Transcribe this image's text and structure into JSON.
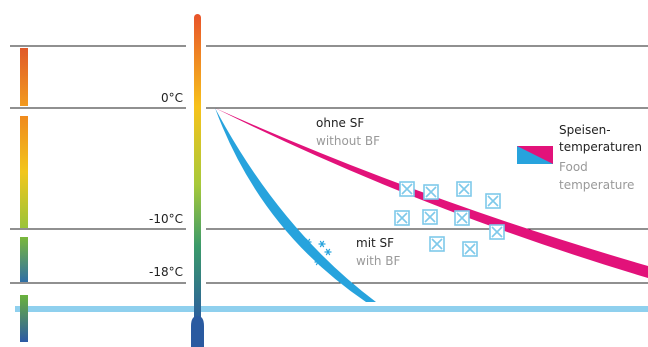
{
  "temperatures": [
    "0°C",
    "-10°C",
    "-18°C"
  ],
  "curves": {
    "without": {
      "label": "ohne SF",
      "translation": "without BF"
    },
    "with": {
      "label": "mit SF",
      "translation": "with BF"
    }
  },
  "legend": {
    "label_line1": "Speisen-",
    "label_line2": "temperaturen",
    "translation_line1": "Food",
    "translation_line2": "temperature"
  }
}
